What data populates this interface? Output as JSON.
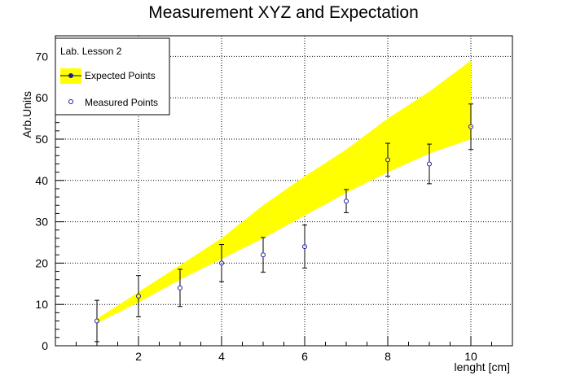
{
  "chart_data": {
    "type": "scatter",
    "title": "Measurement XYZ and Expectation",
    "xlabel": "lenght [cm]",
    "ylabel": "Arb.Units",
    "xlim": [
      0,
      11
    ],
    "ylim": [
      0,
      75
    ],
    "x_ticks": [
      2,
      4,
      6,
      8,
      10
    ],
    "y_ticks": [
      0,
      10,
      20,
      30,
      40,
      50,
      60,
      70
    ],
    "grid": true,
    "legend": {
      "title": "Lab. Lesson 2",
      "placement": "top-left",
      "entries": [
        "Expected Points",
        "Measured Points"
      ]
    },
    "colors": {
      "band": "#ffff00",
      "marker": "#1a1aa6",
      "error": "#000000",
      "grid": "#000000"
    },
    "series": [
      {
        "name": "Expected Points",
        "kind": "band",
        "x": [
          1,
          2,
          3,
          4,
          5,
          6,
          7,
          8,
          9,
          10
        ],
        "low": [
          5.5,
          10.5,
          16,
          21,
          26,
          31.5,
          37,
          42,
          46.5,
          50
        ],
        "high": [
          6.5,
          13,
          19.5,
          26,
          34,
          41,
          47.5,
          55,
          61.5,
          69
        ]
      },
      {
        "name": "Measured Points",
        "kind": "points",
        "x": [
          1,
          2,
          3,
          4,
          5,
          6,
          7,
          8,
          9,
          10
        ],
        "y": [
          6,
          12,
          14,
          20,
          22,
          24,
          35,
          45,
          44,
          53
        ],
        "yerr": [
          5,
          5,
          4.5,
          4.5,
          4.2,
          5.2,
          2.8,
          4,
          4.8,
          5.5
        ]
      }
    ]
  }
}
